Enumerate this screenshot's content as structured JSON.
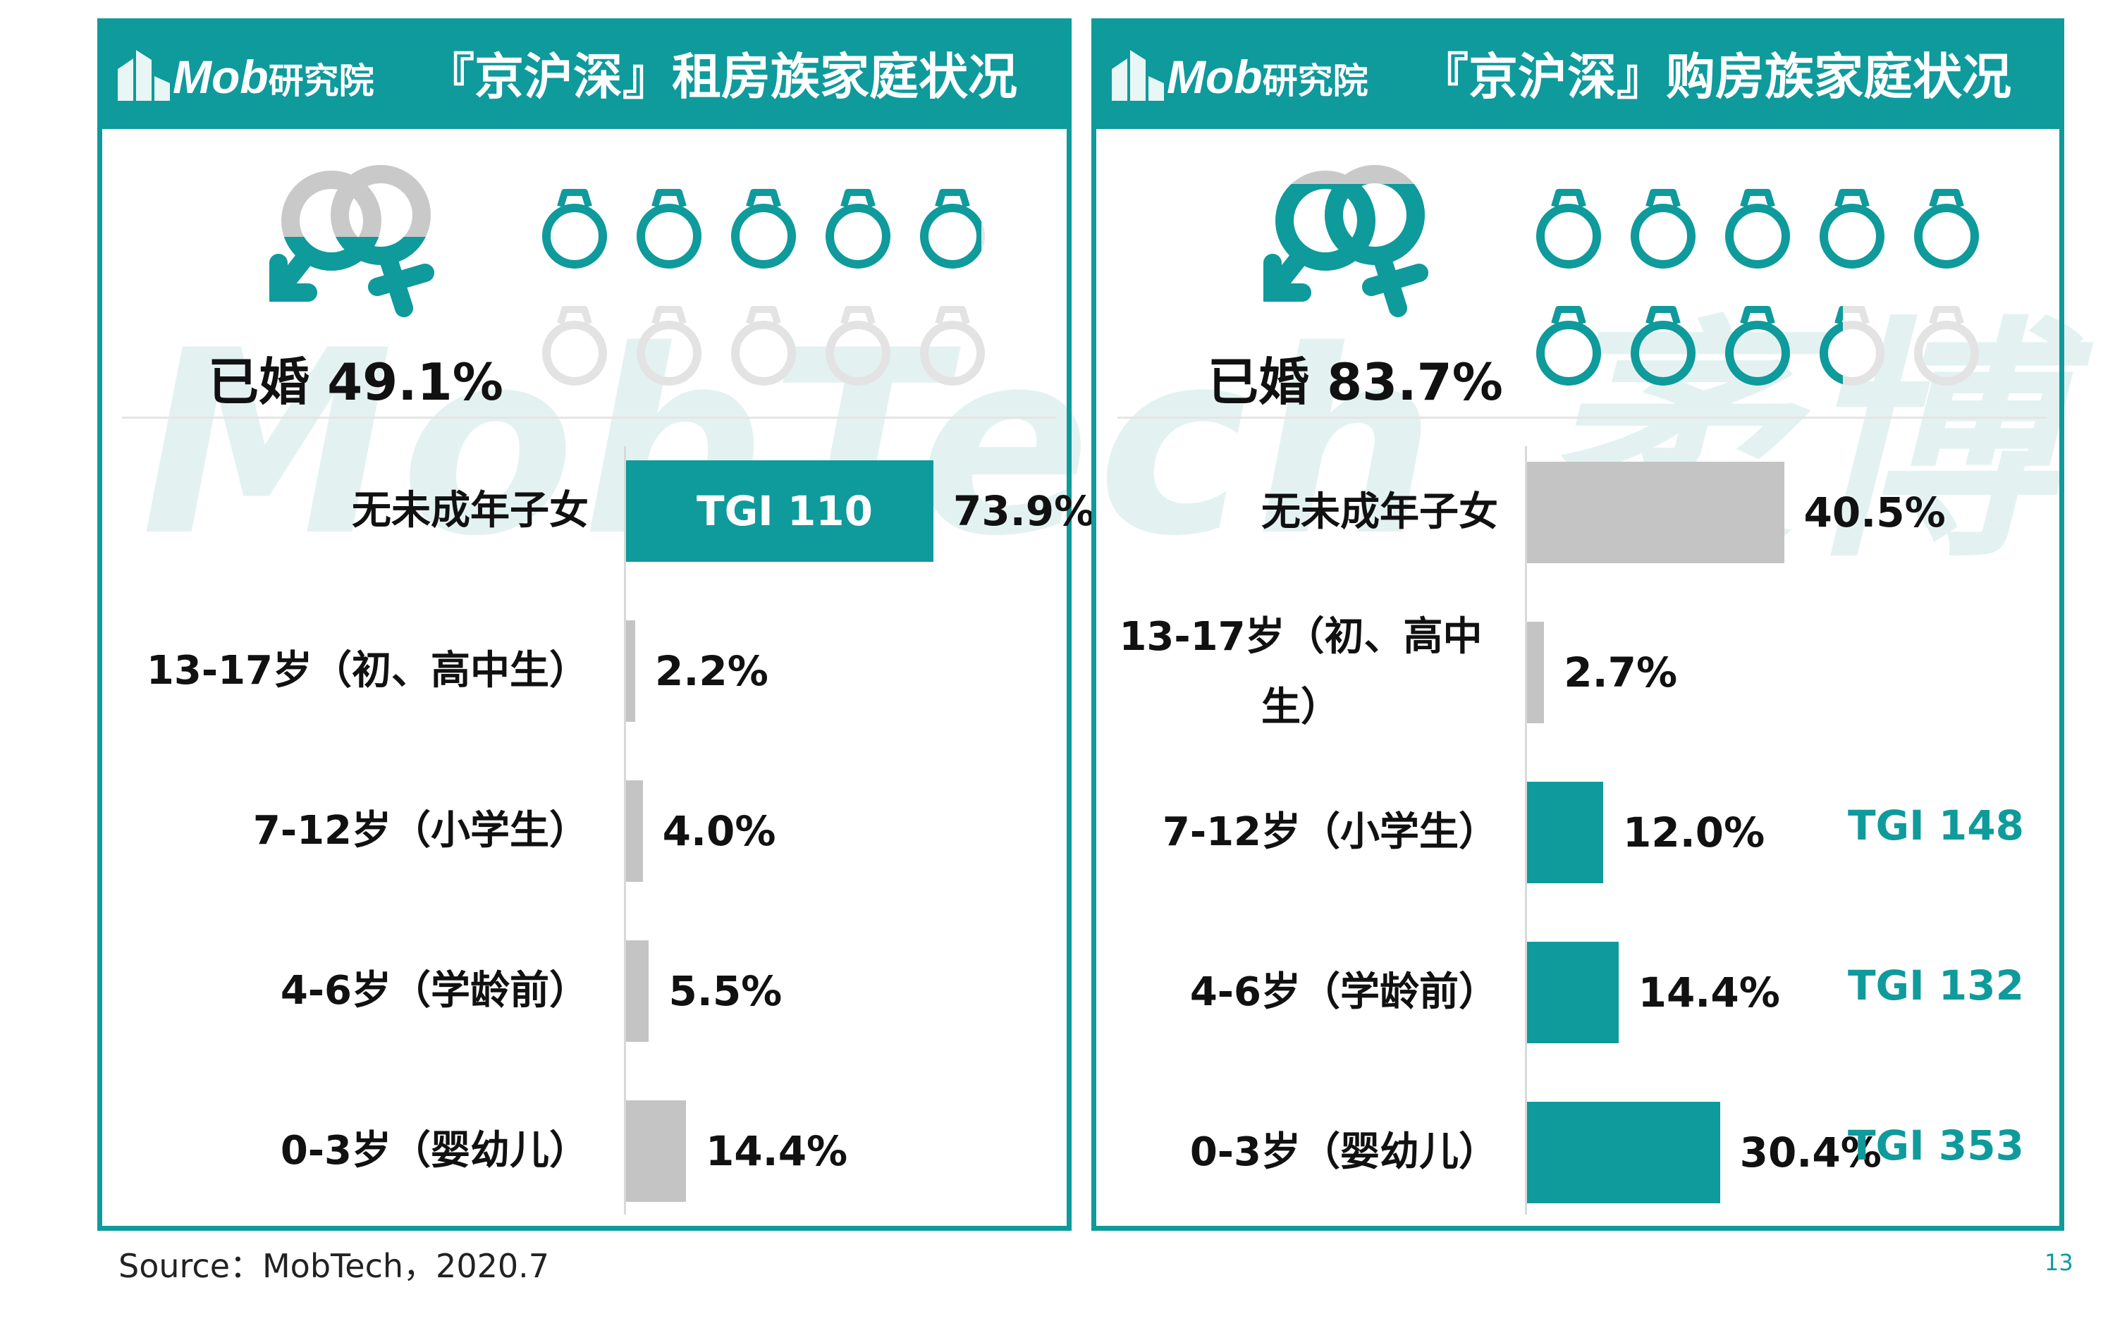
{
  "watermark": "MobTech 袤博",
  "brand": {
    "logo_latin": "Mob",
    "logo_cn": "研究院",
    "accent": "#0f9a9c",
    "gray": "#c4c4c4"
  },
  "source": "Source：MobTech，2020.7",
  "page_number": "13",
  "chart_data": [
    {
      "type": "bar",
      "title": "『京沪深』租房族家庭状况",
      "married_label": "已婚 49.1%",
      "married_rate": 49.1,
      "categories": [
        "无未成年子女",
        "13-17岁（初、高中生）",
        "7-12岁（小学生）",
        "4-6岁（学龄前）",
        "0-3岁（婴幼儿）"
      ],
      "values": [
        73.9,
        2.2,
        4.0,
        5.5,
        14.4
      ],
      "value_labels": [
        "73.9%",
        "2.2%",
        "4.0%",
        "5.5%",
        "14.4%"
      ],
      "tgi": [
        "TGI 110",
        "",
        "",
        "",
        ""
      ],
      "highlight": [
        true,
        false,
        false,
        false,
        false
      ]
    },
    {
      "type": "bar",
      "title": "『京沪深』购房族家庭状况",
      "married_label": "已婚 83.7%",
      "married_rate": 83.7,
      "categories": [
        "无未成年子女",
        "13-17岁（初、高中生）",
        "7-12岁（小学生）",
        "4-6岁（学龄前）",
        "0-3岁（婴幼儿）"
      ],
      "values": [
        40.5,
        2.7,
        12.0,
        14.4,
        30.4
      ],
      "value_labels": [
        "40.5%",
        "2.7%",
        "12.0%",
        "14.4%",
        "30.4%"
      ],
      "tgi": [
        "",
        "",
        "TGI 148",
        "TGI 132",
        "TGI 353"
      ],
      "highlight": [
        false,
        false,
        true,
        true,
        true
      ]
    }
  ]
}
